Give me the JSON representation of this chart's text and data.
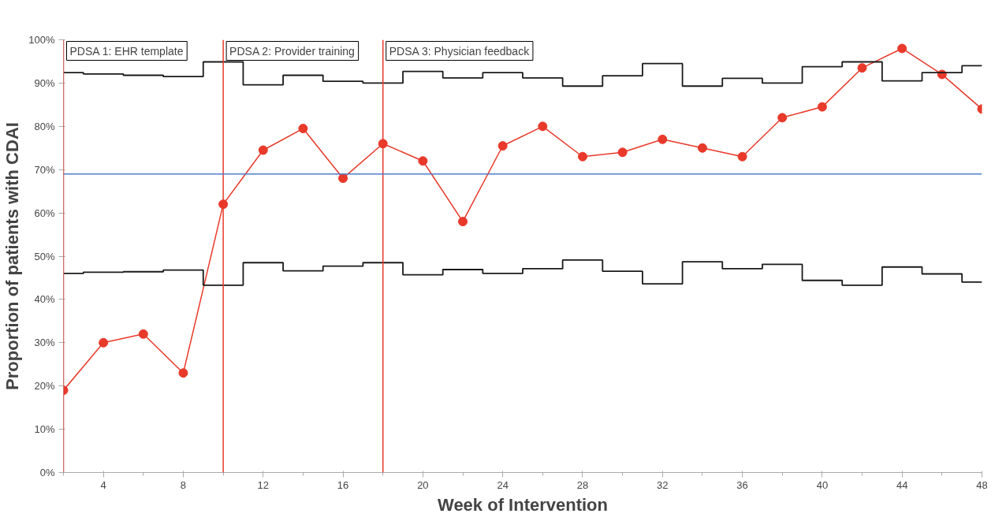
{
  "chart_data": {
    "type": "line",
    "xlabel": "Week of Intervention",
    "ylabel": "Proportion of patients with CDAI",
    "x": [
      2,
      4,
      6,
      8,
      10,
      12,
      14,
      16,
      18,
      20,
      22,
      24,
      26,
      28,
      30,
      32,
      34,
      36,
      38,
      40,
      42,
      44,
      46,
      48
    ],
    "series": [
      {
        "color": "#e8392a",
        "marker": "circle",
        "values": [
          19,
          30,
          32,
          23,
          62,
          74.5,
          79.5,
          68,
          76,
          72,
          58,
          75.5,
          80,
          73,
          74,
          77,
          75,
          73,
          82,
          84.5,
          93.5,
          98,
          92,
          84
        ]
      },
      {
        "type": "step",
        "color": "#1a1a1a",
        "values": [
          92.4,
          92.1,
          91.8,
          91.5,
          94.9,
          89.6,
          91.8,
          90.4,
          90.0,
          92.7,
          91.2,
          92.4,
          91.2,
          89.3,
          91.7,
          94.5,
          89.3,
          91.1,
          90.0,
          93.8,
          94.9,
          90.5,
          92.4,
          94.0
        ]
      },
      {
        "type": "step",
        "color": "#1a1a1a",
        "values": [
          46.0,
          46.3,
          46.4,
          46.8,
          43.3,
          48.5,
          46.6,
          47.7,
          48.5,
          45.7,
          46.9,
          46.0,
          47.1,
          49.1,
          46.5,
          43.6,
          48.7,
          47.1,
          48.1,
          44.4,
          43.3,
          47.5,
          45.9,
          44.0
        ]
      }
    ],
    "xlim": [
      2,
      48
    ],
    "xticks": [
      4,
      8,
      12,
      16,
      20,
      24,
      28,
      32,
      36,
      40,
      44,
      48
    ],
    "ylim": [
      0,
      100
    ],
    "yticks": [
      {
        "value": 0,
        "label": "0%"
      },
      {
        "value": 10,
        "label": "10%"
      },
      {
        "value": 20,
        "label": "20%"
      },
      {
        "value": 30,
        "label": "30%"
      },
      {
        "value": 40,
        "label": "40%"
      },
      {
        "value": 50,
        "label": "50%"
      },
      {
        "value": 60,
        "label": "60%"
      },
      {
        "value": 70,
        "label": "70%"
      },
      {
        "value": 80,
        "label": "80%"
      },
      {
        "value": 90,
        "label": "90%"
      },
      {
        "value": 100,
        "label": "100%"
      }
    ],
    "ref_lines": [
      {
        "axis": "x",
        "value": 2,
        "label": "PDSA 1: EHR template",
        "color": "#e8392a"
      },
      {
        "axis": "x",
        "value": 10,
        "label": "PDSA 2: Provider training",
        "color": "#e8392a"
      },
      {
        "axis": "x",
        "value": 18,
        "label": "PDSA 3: Physician feedback",
        "color": "#e8392a"
      },
      {
        "axis": "y",
        "value": 69,
        "color": "#4f7dc9"
      }
    ],
    "grid": false
  }
}
